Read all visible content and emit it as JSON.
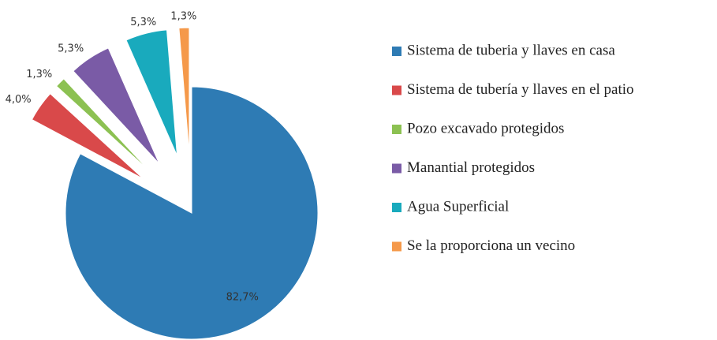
{
  "chart_data": {
    "type": "pie",
    "categories": [
      "Sistema de tuberia y llaves  en casa",
      "Sistema de tubería y llaves  en el patio",
      "Pozo excavado protegidos",
      "Manantial protegidos",
      "Agua Superficial",
      "Se la proporciona un vecino"
    ],
    "values": [
      82.7,
      4.0,
      1.3,
      5.3,
      5.3,
      1.3
    ],
    "value_labels": [
      "82,7%",
      "4,0%",
      "1,3%",
      "5,3%",
      "5,3%",
      "1,3%"
    ],
    "colors": [
      "#2e7bb4",
      "#d9494a",
      "#8cc152",
      "#7a5ba6",
      "#19aabd",
      "#f5994a"
    ],
    "legend": "right"
  }
}
